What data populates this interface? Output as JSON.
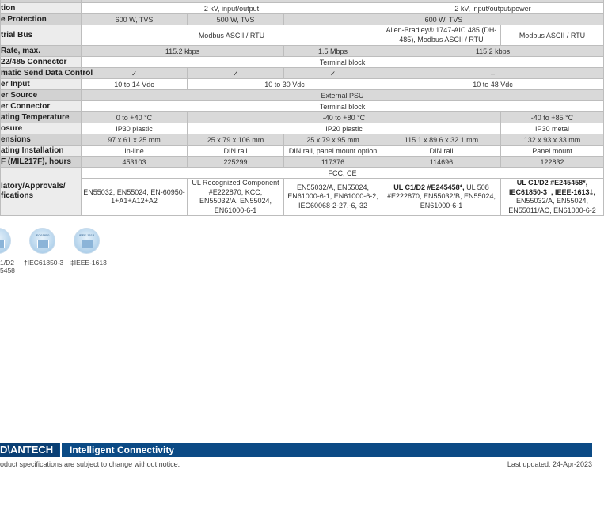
{
  "table": {
    "rows": [
      {
        "label": "",
        "cells": [
          {
            "t": "",
            "span": 5
          }
        ],
        "gray": true
      },
      {
        "label": "tion",
        "cells": [
          {
            "t": "2 kV, input/output",
            "span": 3
          },
          {
            "t": "2 kV, input/output/power",
            "span": 2
          }
        ]
      },
      {
        "label": "e Protection",
        "gray": true,
        "cells": [
          {
            "t": "600 W, TVS"
          },
          {
            "t": "500 W, TVS"
          },
          {
            "t": "600 W, TVS",
            "span": 3
          }
        ]
      },
      {
        "label": "trial Bus",
        "tall": true,
        "cells": [
          {
            "t": "Modbus ASCII / RTU",
            "span": 3
          },
          {
            "t": "Allen-Bradley® 1747-AIC 485 (DH-485), Modbus ASCII / RTU",
            "wrap": true
          },
          {
            "t": "Modbus ASCII / RTU"
          }
        ]
      },
      {
        "label": " Rate, max.",
        "gray": true,
        "cells": [
          {
            "t": "115.2 kbps",
            "span": 2
          },
          {
            "t": "1.5 Mbps"
          },
          {
            "t": "115.2 kbps",
            "span": 2
          }
        ]
      },
      {
        "label": "22/485 Connector",
        "cells": [
          {
            "t": "Terminal block",
            "span": 5
          }
        ]
      },
      {
        "label": "matic Send Data Control",
        "gray": true,
        "cells": [
          {
            "t": "✓"
          },
          {
            "t": "✓"
          },
          {
            "t": "✓"
          },
          {
            "t": "–",
            "span": 2
          }
        ]
      },
      {
        "label": "er Input",
        "cells": [
          {
            "t": "10 to 14  Vdc"
          },
          {
            "t": "10 to 30 Vdc",
            "span": 2
          },
          {
            "t": "10 to 48 Vdc",
            "span": 2
          }
        ]
      },
      {
        "label": "er Source",
        "gray": true,
        "cells": [
          {
            "t": "External PSU",
            "span": 5
          }
        ]
      },
      {
        "label": "er Connector",
        "cells": [
          {
            "t": "Terminal block",
            "span": 5
          }
        ]
      },
      {
        "label": "ating Temperature",
        "gray": true,
        "cells": [
          {
            "t": "0 to +40 °C"
          },
          {
            "t": "-40 to +80 °C",
            "span": 3
          },
          {
            "t": "-40 to +85 °C"
          }
        ]
      },
      {
        "label": "osure",
        "cells": [
          {
            "t": "IP30 plastic"
          },
          {
            "t": "IP20 plastic",
            "span": 3
          },
          {
            "t": "IP30 metal"
          }
        ]
      },
      {
        "label": "ensions",
        "gray": true,
        "cells": [
          {
            "t": "97 x 61 x 25 mm"
          },
          {
            "t": "25 x 79 x 106 mm"
          },
          {
            "t": "25 x 79 x 95 mm"
          },
          {
            "t": "115.1 x 89.6 x 32.1 mm"
          },
          {
            "t": "132 x 93 x 33 mm"
          }
        ]
      },
      {
        "label": "ating Installation",
        "cells": [
          {
            "t": "In-line"
          },
          {
            "t": "DIN rail"
          },
          {
            "t": "DIN rail, panel mount option"
          },
          {
            "t": "DIN rail"
          },
          {
            "t": "Panel mount"
          }
        ]
      },
      {
        "label": "F (MIL217F), hours",
        "gray": true,
        "cells": [
          {
            "t": "453103"
          },
          {
            "t": "225299"
          },
          {
            "t": "117376"
          },
          {
            "t": "114696"
          },
          {
            "t": "122832"
          }
        ]
      },
      {
        "label": "latory/Approvals/\nfications",
        "cells": [
          {
            "t": "FCC, CE",
            "span": 5
          }
        ],
        "regHead": true
      },
      {
        "label": "",
        "reg": true,
        "cells": [
          {
            "t": "EN55032, EN55024, EN-60950-1+A1+A12+A2",
            "wrap": true
          },
          {
            "t": "UL Recognized Component #E222870, KCC, EN55032/A, EN55024, EN61000-6-1",
            "wrap": true
          },
          {
            "t": "EN55032/A, EN55024, EN61000-6-1, EN61000-6-2, IEC60068-2-27,-6,-32",
            "wrap": true
          },
          {
            "bold": "UL C1/D2 #E245458*,",
            "t": " UL 508 #E222870, EN55032/B,  EN55024, EN61000-6-1",
            "wrap": true
          },
          {
            "bold": "UL C1/D2 #E245458*, IEC61850-3†, IEEE-1613‡,",
            "t": " EN55032/A, EN55024, EN55011/AC, EN61000-6-2",
            "wrap": true
          }
        ]
      }
    ]
  },
  "badges": [
    {
      "text": "",
      "caption": "1/D2\n5458"
    },
    {
      "text": "IEC61850",
      "caption": "†IEC61850-3"
    },
    {
      "text": "IEEE-1613",
      "caption": "‡IEEE-1613"
    }
  ],
  "footer": {
    "logo": "D\\ANTECH",
    "tagline": "Intelligent Connectivity",
    "notice": "oduct specifications are subject to change without notice.",
    "updated": "Last updated: 24-Apr-2023",
    "brand_color": "#0b4a85"
  }
}
